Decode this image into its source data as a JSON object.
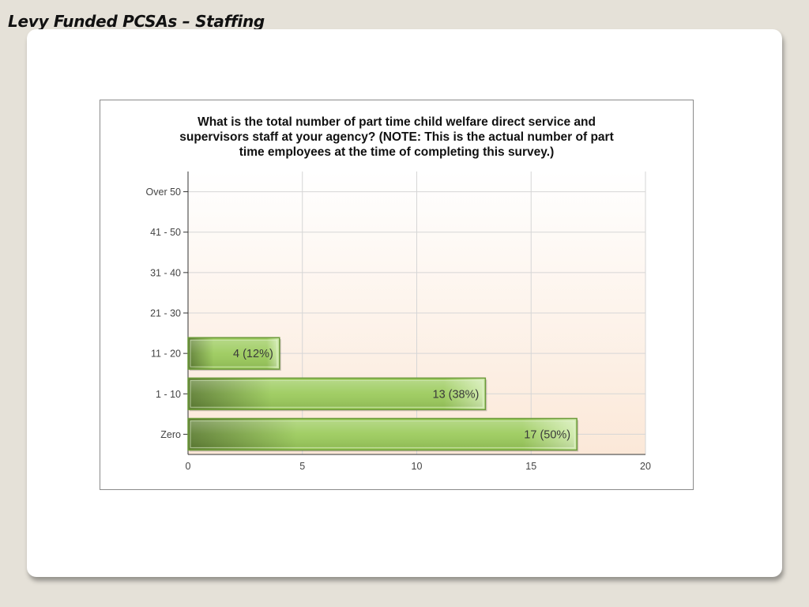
{
  "slide": {
    "title": "Levy Funded PCSAs – Staffing"
  },
  "chart_data": {
    "type": "bar",
    "orientation": "horizontal",
    "title": "What is the total number of part time child welfare direct service and\nsupervisors staff at your agency? (NOTE:  This is the actual number of part\ntime employees at the time of completing this survey.)",
    "categories": [
      "Over 50",
      "41 - 50",
      "31 - 40",
      "21 - 30",
      "11 - 20",
      "1 - 10",
      "Zero"
    ],
    "values": [
      0,
      0,
      0,
      0,
      4,
      13,
      17
    ],
    "data_labels": [
      "",
      "",
      "",
      "",
      "4 (12%)",
      "13 (38%)",
      "17 (50%)"
    ],
    "xlim": [
      0,
      20
    ],
    "xticks": [
      0,
      5,
      10,
      15,
      20
    ],
    "xlabel": "",
    "ylabel": "",
    "grid": true,
    "colors": {
      "bar_dark": "#5f7f35",
      "bar_light": "#9ccb5d",
      "bar_highlight": "#d2ecb0",
      "bar_border": "#6c9a3a",
      "plot_bg_top": "#ffffff",
      "plot_bg_bottom": "#fbe8d8",
      "grid": "#d6d6d6",
      "axis": "#333333"
    }
  }
}
